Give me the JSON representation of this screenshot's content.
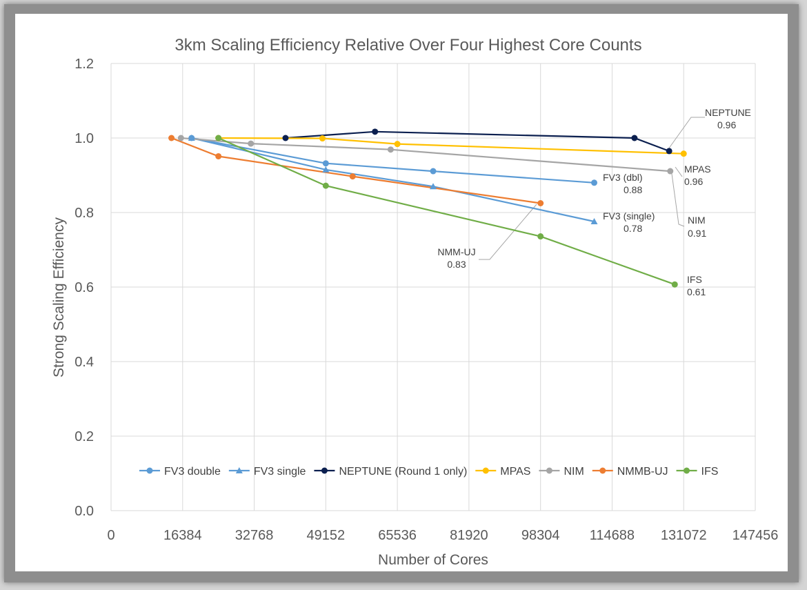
{
  "chart_data": {
    "type": "line",
    "title": "3km Scaling Efficiency Relative Over Four Highest Core Counts",
    "xlabel": "Number of Cores",
    "ylabel": "Strong Scaling Efficiency",
    "xlim": [
      0,
      147456
    ],
    "ylim": [
      0,
      1.2
    ],
    "xticks": [
      "0",
      "16384",
      "32768",
      "49152",
      "65536",
      "81920",
      "98304",
      "114688",
      "131072",
      "147456"
    ],
    "yticks": [
      "0.0",
      "0.2",
      "0.4",
      "0.6",
      "0.8",
      "1.0",
      "1.2"
    ],
    "grid": true,
    "legend_position": "bottom-inside",
    "series": [
      {
        "name": "FV3 double",
        "color": "#5b9bd5",
        "marker": "circle",
        "x": [
          18432,
          49152,
          73728,
          110592
        ],
        "y": [
          1.0,
          0.932,
          0.911,
          0.88
        ]
      },
      {
        "name": "FV3 single",
        "color": "#5b9bd5",
        "marker": "triangle",
        "x": [
          18432,
          49152,
          73728,
          110592
        ],
        "y": [
          1.0,
          0.915,
          0.87,
          0.776
        ]
      },
      {
        "name": "NEPTUNE (Round 1 only)",
        "color": "#0b1f4f",
        "marker": "circle",
        "x": [
          39936,
          60416,
          119808,
          127744
        ],
        "y": [
          1.0,
          1.017,
          1.0,
          0.965
        ]
      },
      {
        "name": "MPAS",
        "color": "#ffc000",
        "marker": "circle",
        "x": [
          24576,
          48384,
          65536,
          131072
        ],
        "y": [
          1.0,
          0.999,
          0.984,
          0.958
        ]
      },
      {
        "name": "NIM",
        "color": "#a5a5a5",
        "marker": "circle",
        "x": [
          16000,
          32000,
          64000,
          128000
        ],
        "y": [
          1.0,
          0.985,
          0.969,
          0.911
        ]
      },
      {
        "name": "NMMB-UJ",
        "color": "#ed7d31",
        "marker": "circle",
        "x": [
          13824,
          24576,
          55296,
          98304
        ],
        "y": [
          1.0,
          0.951,
          0.897,
          0.825
        ]
      },
      {
        "name": "IFS",
        "color": "#70ad47",
        "marker": "circle",
        "x": [
          24576,
          49152,
          98304,
          129024
        ],
        "y": [
          1.0,
          0.872,
          0.736,
          0.607
        ]
      }
    ],
    "annotations": [
      {
        "name": "NEPTUNE",
        "value": "0.96"
      },
      {
        "name": "MPAS",
        "value": "0.96"
      },
      {
        "name": "FV3 (dbl)",
        "value": "0.88"
      },
      {
        "name": "FV3 (single)",
        "value": "0.78"
      },
      {
        "name": "NIM",
        "value": "0.91"
      },
      {
        "name": "NMM-UJ",
        "value": "0.83"
      },
      {
        "name": "IFS",
        "value": "0.61"
      }
    ]
  }
}
